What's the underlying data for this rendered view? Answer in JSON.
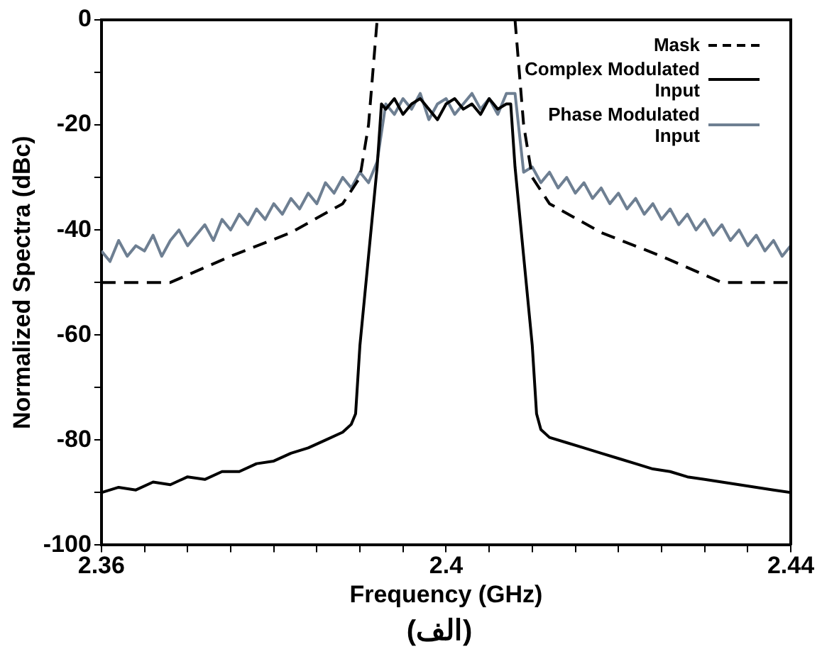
{
  "chart_data": {
    "type": "line",
    "xlabel": "Frequency (GHz)",
    "ylabel": "Normalized Spectra (dBc)",
    "annotations": [
      "(الف)"
    ],
    "xlim": [
      2.36,
      2.44
    ],
    "xticks": [
      2.36,
      {
        "value": 2.365,
        "label": null
      },
      {
        "value": 2.37,
        "label": null
      },
      {
        "value": 2.375,
        "label": null
      },
      {
        "value": 2.38,
        "label": null
      },
      {
        "value": 2.385,
        "label": null
      },
      {
        "value": 2.39,
        "label": null
      },
      {
        "value": 2.395,
        "label": null
      },
      2.4,
      {
        "value": 2.405,
        "label": null
      },
      {
        "value": 2.41,
        "label": null
      },
      {
        "value": 2.415,
        "label": null
      },
      {
        "value": 2.42,
        "label": null
      },
      {
        "value": 2.425,
        "label": null
      },
      {
        "value": 2.43,
        "label": null
      },
      {
        "value": 2.435,
        "label": null
      },
      2.44
    ],
    "ylim": [
      -100,
      0
    ],
    "yticks": [
      -100,
      {
        "value": -90,
        "label": null
      },
      -80,
      {
        "value": -70,
        "label": null
      },
      -60,
      {
        "value": -50,
        "label": null
      },
      -40,
      {
        "value": -30,
        "label": null
      },
      -20,
      {
        "value": -10,
        "label": null
      },
      0
    ],
    "grid": false,
    "legend": "top right",
    "marker": "none",
    "series": [
      {
        "name": "Mask",
        "color": "#000000",
        "line_style": "dashed",
        "x": [
          2.36,
          2.368,
          2.375,
          2.382,
          2.388,
          2.39,
          2.391,
          2.392,
          2.4,
          2.408,
          2.409,
          2.41,
          2.412,
          2.418,
          2.425,
          2.432,
          2.44
        ],
        "values": [
          -50,
          -50,
          -45,
          -40.5,
          -35,
          -30,
          -20,
          0,
          null,
          0,
          -20,
          -30,
          -35,
          -40.5,
          -45,
          -50,
          -50
        ]
      },
      {
        "name": "Complex Modulated Input",
        "color": "#000000",
        "line_style": "solid",
        "x": [
          2.36,
          2.362,
          2.364,
          2.366,
          2.368,
          2.37,
          2.372,
          2.374,
          2.376,
          2.378,
          2.38,
          2.382,
          2.384,
          2.386,
          2.388,
          2.389,
          2.3895,
          2.39,
          2.391,
          2.392,
          2.3925,
          2.393,
          2.394,
          2.395,
          2.396,
          2.397,
          2.398,
          2.399,
          2.4,
          2.401,
          2.402,
          2.403,
          2.404,
          2.405,
          2.406,
          2.407,
          2.4075,
          2.408,
          2.409,
          2.41,
          2.4105,
          2.411,
          2.412,
          2.414,
          2.416,
          2.418,
          2.42,
          2.422,
          2.424,
          2.426,
          2.428,
          2.43,
          2.432,
          2.434,
          2.436,
          2.438,
          2.44
        ],
        "values": [
          -90,
          -89,
          -89.5,
          -88,
          -88.5,
          -87,
          -87.5,
          -86,
          -86,
          -84.5,
          -84,
          -82.5,
          -81.5,
          -80,
          -78.5,
          -77,
          -75,
          -62,
          -45,
          -28,
          -16,
          -17,
          -15,
          -18,
          -16,
          -15,
          -17,
          -19,
          -16,
          -15,
          -17,
          -16,
          -18,
          -15,
          -17,
          -16,
          -16,
          -28,
          -45,
          -62,
          -75,
          -78,
          -79.5,
          -80.5,
          -81.5,
          -82.5,
          -83.5,
          -84.5,
          -85.5,
          -86,
          -87,
          -87.5,
          -88,
          -88.5,
          -89,
          -89.5,
          -90
        ]
      },
      {
        "name": "Phase Modulated Input",
        "color": "#6e7f92",
        "line_style": "solid",
        "x": [
          2.36,
          2.361,
          2.362,
          2.363,
          2.364,
          2.365,
          2.366,
          2.367,
          2.368,
          2.369,
          2.37,
          2.371,
          2.372,
          2.373,
          2.374,
          2.375,
          2.376,
          2.377,
          2.378,
          2.379,
          2.38,
          2.381,
          2.382,
          2.383,
          2.384,
          2.385,
          2.386,
          2.387,
          2.388,
          2.389,
          2.39,
          2.391,
          2.392,
          2.393,
          2.394,
          2.395,
          2.396,
          2.397,
          2.398,
          2.399,
          2.4,
          2.401,
          2.402,
          2.403,
          2.404,
          2.405,
          2.406,
          2.407,
          2.408,
          2.409,
          2.41,
          2.411,
          2.412,
          2.413,
          2.414,
          2.415,
          2.416,
          2.417,
          2.418,
          2.419,
          2.42,
          2.421,
          2.422,
          2.423,
          2.424,
          2.425,
          2.426,
          2.427,
          2.428,
          2.429,
          2.43,
          2.431,
          2.432,
          2.433,
          2.434,
          2.435,
          2.436,
          2.437,
          2.438,
          2.439,
          2.44
        ],
        "values": [
          -44,
          -46,
          -42,
          -45,
          -43,
          -44,
          -41,
          -45,
          -42,
          -40,
          -43,
          -41,
          -39,
          -42,
          -38,
          -40,
          -37,
          -39,
          -36,
          -38,
          -35,
          -37,
          -34,
          -36,
          -33,
          -35,
          -31,
          -33,
          -30,
          -32,
          -29,
          -31,
          -27,
          -16,
          -18,
          -15,
          -17,
          -14,
          -19,
          -16,
          -15,
          -18,
          -16,
          -14,
          -17,
          -15,
          -18,
          -14,
          -14,
          -29,
          -28,
          -31,
          -29,
          -32,
          -30,
          -33,
          -31,
          -34,
          -32,
          -35,
          -33,
          -36,
          -34,
          -37,
          -35,
          -38,
          -36,
          -39,
          -37,
          -40,
          -38,
          -41,
          -39,
          -42,
          -40,
          -43,
          -41,
          -44,
          -42,
          -45,
          -43
        ]
      }
    ]
  }
}
